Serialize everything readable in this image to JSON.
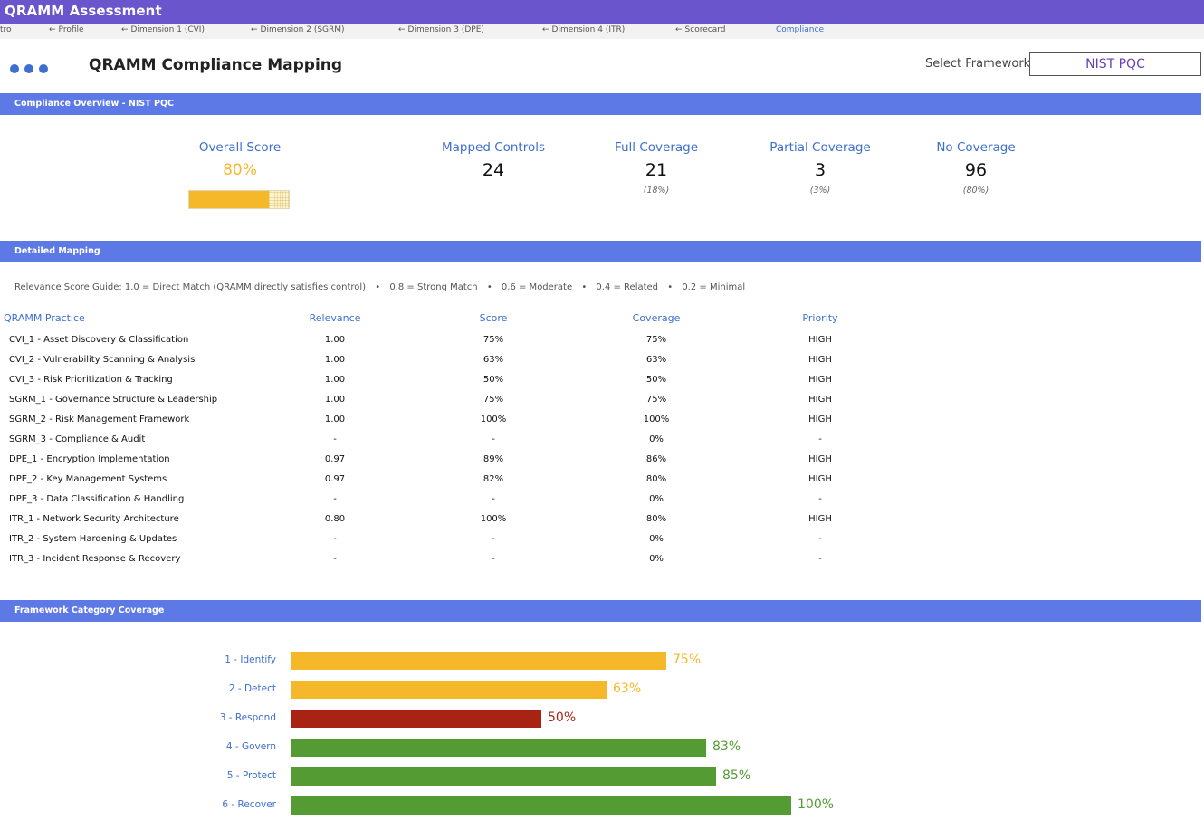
{
  "app": {
    "title": "QRAMM Assessment"
  },
  "tabs": [
    {
      "label": "tro",
      "arrow": "",
      "active": false
    },
    {
      "label": "Profile",
      "arrow": "←",
      "active": false
    },
    {
      "label": "Dimension 1 (CVI)",
      "arrow": "←",
      "active": false
    },
    {
      "label": "Dimension 2 (SGRM)",
      "arrow": "←",
      "active": false
    },
    {
      "label": "Dimension 3 (DPE)",
      "arrow": "←",
      "active": false
    },
    {
      "label": "Dimension 4 (ITR)",
      "arrow": "←",
      "active": false
    },
    {
      "label": "Scorecard",
      "arrow": "←",
      "active": false
    },
    {
      "label": "Compliance",
      "arrow": "",
      "active": true
    }
  ],
  "header": {
    "title": "QRAMM Compliance Mapping",
    "framework_label": "Select Framework",
    "framework_value": "NIST PQC"
  },
  "overview": {
    "section_title": "Compliance Overview - NIST PQC",
    "overall_label": "Overall Score",
    "overall_value": "80%",
    "overall_fraction": 0.8,
    "mapped_label": "Mapped Controls",
    "mapped_value": "24",
    "full_label": "Full Coverage",
    "full_value": "21",
    "full_sub": "(18%)",
    "partial_label": "Partial Coverage",
    "partial_value": "3",
    "partial_sub": "(3%)",
    "none_label": "No Coverage",
    "none_value": "96",
    "none_sub": "(80%)"
  },
  "mapping": {
    "section_title": "Detailed Mapping",
    "guide": {
      "lead": "Relevance Score Guide: 1.0 = Direct Match (QRAMM directly satisfies control)",
      "items": [
        "0.8 = Strong Match",
        "0.6 = Moderate",
        "0.4 = Related",
        "0.2 = Minimal"
      ],
      "separator": "•"
    },
    "columns": [
      "QRAMM Practice",
      "Relevance",
      "Score",
      "Coverage",
      "Priority"
    ],
    "rows": [
      {
        "practice": "CVI_1 - Asset Discovery & Classification",
        "relevance": "1.00",
        "score": "75%",
        "coverage": "75%",
        "priority": "HIGH"
      },
      {
        "practice": "CVI_2 - Vulnerability Scanning & Analysis",
        "relevance": "1.00",
        "score": "63%",
        "coverage": "63%",
        "priority": "HIGH"
      },
      {
        "practice": "CVI_3 - Risk Prioritization & Tracking",
        "relevance": "1.00",
        "score": "50%",
        "coverage": "50%",
        "priority": "HIGH"
      },
      {
        "practice": "SGRM_1 - Governance Structure & Leadership",
        "relevance": "1.00",
        "score": "75%",
        "coverage": "75%",
        "priority": "HIGH"
      },
      {
        "practice": "SGRM_2 - Risk Management Framework",
        "relevance": "1.00",
        "score": "100%",
        "coverage": "100%",
        "priority": "HIGH"
      },
      {
        "practice": "SGRM_3 - Compliance & Audit",
        "relevance": "-",
        "score": "-",
        "coverage": "0%",
        "priority": "-"
      },
      {
        "practice": "DPE_1 - Encryption Implementation",
        "relevance": "0.97",
        "score": "89%",
        "coverage": "86%",
        "priority": "HIGH"
      },
      {
        "practice": "DPE_2 - Key Management Systems",
        "relevance": "0.97",
        "score": "82%",
        "coverage": "80%",
        "priority": "HIGH"
      },
      {
        "practice": "DPE_3 - Data Classification & Handling",
        "relevance": "-",
        "score": "-",
        "coverage": "0%",
        "priority": "-"
      },
      {
        "practice": "ITR_1 - Network Security Architecture",
        "relevance": "0.80",
        "score": "100%",
        "coverage": "80%",
        "priority": "HIGH"
      },
      {
        "practice": "ITR_2 - System Hardening & Updates",
        "relevance": "-",
        "score": "-",
        "coverage": "0%",
        "priority": "-"
      },
      {
        "practice": "ITR_3 - Incident Response & Recovery",
        "relevance": "-",
        "score": "-",
        "coverage": "0%",
        "priority": "-"
      }
    ]
  },
  "category": {
    "section_title": "Framework Category Coverage"
  },
  "colors": {
    "accent": "#3d6fd0",
    "section": "#5d79e6",
    "titlebar": "#6a55cc",
    "amber": "#f5b82a",
    "red": "#a92314",
    "green": "#559b34"
  },
  "chart_data": {
    "type": "bar",
    "orientation": "horizontal",
    "categories": [
      "1 - Identify",
      "2 - Detect",
      "3 - Respond",
      "4 - Govern",
      "5 - Protect",
      "6 - Recover"
    ],
    "values": [
      75,
      63,
      50,
      83,
      85,
      100
    ],
    "value_labels": [
      "75%",
      "63%",
      "50%",
      "83%",
      "85%",
      "100%"
    ],
    "bar_colors": [
      "#f5b82a",
      "#f5b82a",
      "#a92314",
      "#559b34",
      "#559b34",
      "#559b34"
    ],
    "xlim": [
      0,
      100
    ],
    "title": "",
    "xlabel": "",
    "ylabel": "",
    "grid": false,
    "legend": "none"
  }
}
